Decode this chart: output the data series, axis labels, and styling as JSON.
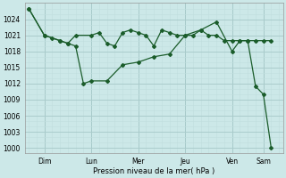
{
  "background_color": "#cce8e8",
  "grid_color_major": "#aacccc",
  "grid_color_minor": "#c0dede",
  "line_color": "#1a5c2a",
  "title": "Pression niveau de la mer( hPa )",
  "ylim": [
    999,
    1027
  ],
  "yticks": [
    1000,
    1003,
    1006,
    1009,
    1012,
    1015,
    1018,
    1021,
    1024
  ],
  "x_day_labels": [
    "Dim",
    "Lun",
    "Mer",
    "Jeu",
    "Ven",
    "Sam"
  ],
  "x_day_positions": [
    2,
    8,
    14,
    20,
    26,
    30
  ],
  "xlim": [
    -0.5,
    32.5
  ],
  "series1_x": [
    0,
    2,
    3,
    4,
    5,
    6,
    8,
    9,
    10,
    11,
    12,
    13,
    14,
    15,
    16,
    17,
    18,
    19,
    20,
    21,
    22,
    23,
    24,
    25,
    26,
    27,
    28,
    29,
    30,
    31
  ],
  "series1_y": [
    1026,
    1021,
    1020.5,
    1020,
    1019.5,
    1021,
    1021,
    1021.5,
    1019.5,
    1019,
    1021.5,
    1022,
    1021.5,
    1021,
    1019,
    1022,
    1021.5,
    1021,
    1021,
    1021,
    1022,
    1021,
    1021,
    1020,
    1020,
    1020,
    1020,
    1020,
    1020,
    1020
  ],
  "series2_x": [
    0,
    2,
    4,
    5,
    6,
    7,
    8,
    10,
    12,
    14,
    16,
    18,
    20,
    22,
    24,
    26,
    27,
    28,
    29,
    30,
    31
  ],
  "series2_y": [
    1026,
    1021,
    1020,
    1019.5,
    1019,
    1012,
    1012.5,
    1012.5,
    1015.5,
    1016,
    1017,
    1017.5,
    1021,
    1022,
    1023.5,
    1018,
    1020,
    1020,
    1011.5,
    1010,
    1000
  ]
}
